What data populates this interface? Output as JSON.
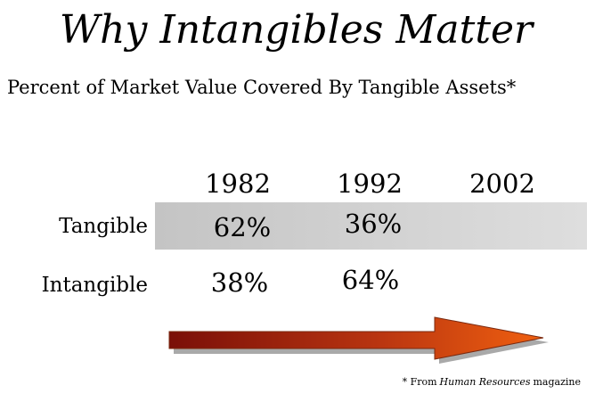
{
  "title": "Why Intangibles Matter",
  "subtitle": "Percent of Market Value Covered By Tangible Assets*",
  "footnote": {
    "prefix": "* From",
    "source": "Human Resources",
    "suffix": "magazine"
  },
  "colors": {
    "band": "#cccccc",
    "arrow_start": "#7a0f08",
    "arrow_end": "#f06010",
    "text": "#000000"
  },
  "chart_data": {
    "type": "table",
    "title": "Percent of Market Value Covered By Tangible Assets*",
    "columns": [
      "1982",
      "1992",
      "2002"
    ],
    "rows": [
      {
        "label": "Tangible",
        "values": [
          "62%",
          "36%",
          ""
        ]
      },
      {
        "label": "Intangible",
        "values": [
          "38%",
          "64%",
          ""
        ]
      }
    ]
  }
}
